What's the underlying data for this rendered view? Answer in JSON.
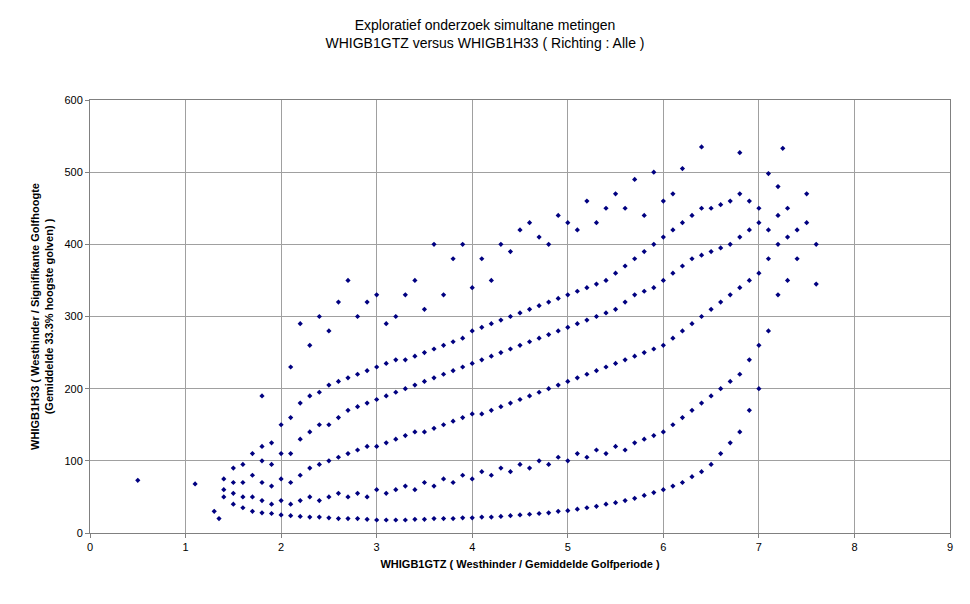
{
  "chart_data": {
    "type": "scatter",
    "title": "Exploratief onderzoek simultane metingen\nWHIGB1GTZ versus WHIGB1H33 ( Richting : Alle )",
    "xlabel": "WHIGB1GTZ ( Westhinder / Gemiddelde Golfperiode )",
    "ylabel": "WHIGB1H33 ( Westhinder / Signifikante Golfhoogte\n(Gemiddelde 33.3% hoogste golven) )",
    "color": "#000080",
    "marker": "diamond",
    "grid": true,
    "xlim": [
      0,
      9
    ],
    "xticks": [
      0,
      1,
      2,
      3,
      4,
      5,
      6,
      7,
      8,
      9
    ],
    "ylim": [
      0,
      600
    ],
    "yticks": [
      0,
      100,
      200,
      300,
      400,
      500,
      600
    ],
    "x": [
      0.5,
      1.1,
      1.3,
      1.35,
      7.25,
      1.4,
      1.4,
      1.4,
      1.5,
      1.5,
      1.5,
      1.5,
      1.6,
      1.6,
      1.6,
      1.6,
      1.7,
      1.7,
      1.7,
      1.7,
      1.8,
      1.8,
      1.8,
      1.8,
      1.8,
      1.8,
      1.9,
      1.9,
      1.9,
      1.9,
      1.9,
      2.0,
      2.0,
      2.0,
      2.0,
      2.0,
      2.1,
      2.1,
      2.1,
      2.1,
      2.1,
      2.1,
      2.2,
      2.2,
      2.2,
      2.2,
      2.2,
      2.2,
      2.3,
      2.3,
      2.3,
      2.3,
      2.3,
      2.3,
      2.4,
      2.4,
      2.4,
      2.4,
      2.4,
      2.4,
      2.5,
      2.5,
      2.5,
      2.5,
      2.5,
      2.5,
      2.6,
      2.6,
      2.6,
      2.6,
      2.6,
      2.6,
      2.7,
      2.7,
      2.7,
      2.7,
      2.7,
      2.7,
      2.8,
      2.8,
      2.8,
      2.8,
      2.8,
      2.8,
      2.9,
      2.9,
      2.9,
      2.9,
      2.9,
      2.9,
      3.0,
      3.0,
      3.0,
      3.0,
      3.0,
      3.0,
      3.1,
      3.1,
      3.1,
      3.1,
      3.1,
      3.1,
      3.2,
      3.2,
      3.2,
      3.2,
      3.2,
      3.2,
      3.3,
      3.3,
      3.3,
      3.3,
      3.3,
      3.3,
      3.4,
      3.4,
      3.4,
      3.4,
      3.4,
      3.4,
      3.5,
      3.5,
      3.5,
      3.5,
      3.5,
      3.5,
      3.6,
      3.6,
      3.6,
      3.6,
      3.6,
      3.6,
      3.7,
      3.7,
      3.7,
      3.7,
      3.7,
      3.7,
      3.8,
      3.8,
      3.8,
      3.8,
      3.8,
      3.8,
      3.9,
      3.9,
      3.9,
      3.9,
      3.9,
      3.9,
      4.0,
      4.0,
      4.0,
      4.0,
      4.0,
      4.0,
      4.1,
      4.1,
      4.1,
      4.1,
      4.1,
      4.1,
      4.2,
      4.2,
      4.2,
      4.2,
      4.2,
      4.2,
      4.3,
      4.3,
      4.3,
      4.3,
      4.3,
      4.3,
      4.4,
      4.4,
      4.4,
      4.4,
      4.4,
      4.4,
      4.5,
      4.5,
      4.5,
      4.5,
      4.5,
      4.5,
      4.6,
      4.6,
      4.6,
      4.6,
      4.6,
      4.6,
      4.7,
      4.7,
      4.7,
      4.7,
      4.7,
      4.7,
      4.8,
      4.8,
      4.8,
      4.8,
      4.8,
      4.8,
      4.9,
      4.9,
      4.9,
      4.9,
      4.9,
      4.9,
      5.0,
      5.0,
      5.0,
      5.0,
      5.0,
      5.0,
      5.1,
      5.1,
      5.1,
      5.1,
      5.1,
      5.1,
      5.2,
      5.2,
      5.2,
      5.2,
      5.2,
      5.2,
      5.3,
      5.3,
      5.3,
      5.3,
      5.3,
      5.3,
      5.4,
      5.4,
      5.4,
      5.4,
      5.4,
      5.4,
      5.5,
      5.5,
      5.5,
      5.5,
      5.5,
      5.5,
      5.6,
      5.6,
      5.6,
      5.6,
      5.6,
      5.6,
      5.7,
      5.7,
      5.7,
      5.7,
      5.7,
      5.7,
      5.8,
      5.8,
      5.8,
      5.8,
      5.8,
      5.8,
      5.9,
      5.9,
      5.9,
      5.9,
      5.9,
      5.9,
      6.0,
      6.0,
      6.0,
      6.0,
      6.0,
      6.0,
      6.1,
      6.1,
      6.1,
      6.1,
      6.1,
      6.1,
      6.2,
      6.2,
      6.2,
      6.2,
      6.2,
      6.2,
      6.3,
      6.3,
      6.3,
      6.3,
      6.3,
      6.4,
      6.4,
      6.4,
      6.4,
      6.4,
      6.4,
      6.5,
      6.5,
      6.5,
      6.5,
      6.5,
      6.6,
      6.6,
      6.6,
      6.6,
      6.6,
      6.7,
      6.7,
      6.7,
      6.7,
      6.7,
      6.8,
      6.8,
      6.8,
      6.8,
      6.8,
      6.8,
      6.9,
      6.9,
      6.9,
      6.9,
      6.9,
      7.0,
      7.0,
      7.0,
      7.0,
      7.0,
      7.1,
      7.1,
      7.1,
      7.1,
      7.2,
      7.2,
      7.2,
      7.2,
      7.3,
      7.3,
      7.3,
      7.4,
      7.4,
      7.5,
      7.5,
      7.6,
      7.6
    ],
    "values": [
      73,
      68,
      30,
      20,
      533,
      50,
      60,
      75,
      40,
      55,
      70,
      90,
      35,
      50,
      70,
      95,
      30,
      50,
      80,
      110,
      28,
      45,
      70,
      100,
      120,
      190,
      27,
      40,
      65,
      95,
      125,
      25,
      45,
      75,
      110,
      150,
      24,
      40,
      70,
      110,
      160,
      230,
      23,
      45,
      80,
      130,
      180,
      290,
      22,
      50,
      90,
      140,
      190,
      260,
      22,
      45,
      95,
      150,
      195,
      300,
      21,
      50,
      100,
      150,
      205,
      280,
      20,
      55,
      105,
      160,
      210,
      320,
      20,
      50,
      110,
      170,
      215,
      350,
      20,
      55,
      115,
      175,
      220,
      300,
      19,
      50,
      120,
      180,
      225,
      320,
      18,
      60,
      120,
      185,
      230,
      330,
      18,
      55,
      125,
      190,
      235,
      290,
      18,
      60,
      130,
      195,
      240,
      300,
      18,
      65,
      135,
      200,
      240,
      330,
      19,
      60,
      140,
      205,
      245,
      350,
      19,
      70,
      140,
      210,
      250,
      310,
      20,
      65,
      145,
      215,
      255,
      400,
      20,
      75,
      150,
      220,
      260,
      330,
      20,
      70,
      155,
      225,
      265,
      380,
      21,
      80,
      160,
      230,
      270,
      400,
      21,
      75,
      165,
      235,
      280,
      340,
      22,
      85,
      165,
      240,
      285,
      380,
      22,
      80,
      170,
      245,
      290,
      350,
      23,
      90,
      175,
      250,
      295,
      400,
      24,
      85,
      180,
      255,
      300,
      390,
      25,
      95,
      185,
      260,
      305,
      420,
      26,
      90,
      190,
      265,
      310,
      430,
      27,
      100,
      195,
      270,
      315,
      410,
      28,
      95,
      200,
      275,
      320,
      400,
      30,
      105,
      205,
      280,
      325,
      440,
      31,
      100,
      210,
      285,
      330,
      430,
      33,
      110,
      215,
      290,
      335,
      420,
      35,
      105,
      220,
      295,
      340,
      460,
      37,
      115,
      225,
      300,
      345,
      430,
      40,
      110,
      230,
      305,
      350,
      450,
      42,
      120,
      235,
      310,
      360,
      470,
      45,
      115,
      240,
      320,
      370,
      450,
      48,
      125,
      245,
      330,
      380,
      490,
      52,
      130,
      250,
      335,
      390,
      440,
      56,
      135,
      255,
      340,
      400,
      500,
      60,
      140,
      260,
      350,
      410,
      460,
      65,
      150,
      270,
      360,
      420,
      470,
      70,
      160,
      280,
      370,
      430,
      505,
      78,
      170,
      290,
      380,
      440,
      85,
      180,
      300,
      385,
      450,
      535,
      95,
      190,
      310,
      390,
      450,
      110,
      200,
      320,
      395,
      455,
      125,
      210,
      330,
      400,
      460,
      140,
      220,
      340,
      410,
      470,
      527,
      170,
      240,
      350,
      420,
      460,
      200,
      260,
      360,
      430,
      450,
      280,
      380,
      420,
      498,
      330,
      400,
      440,
      480,
      350,
      410,
      450,
      380,
      420,
      470,
      430,
      345,
      400
    ]
  }
}
